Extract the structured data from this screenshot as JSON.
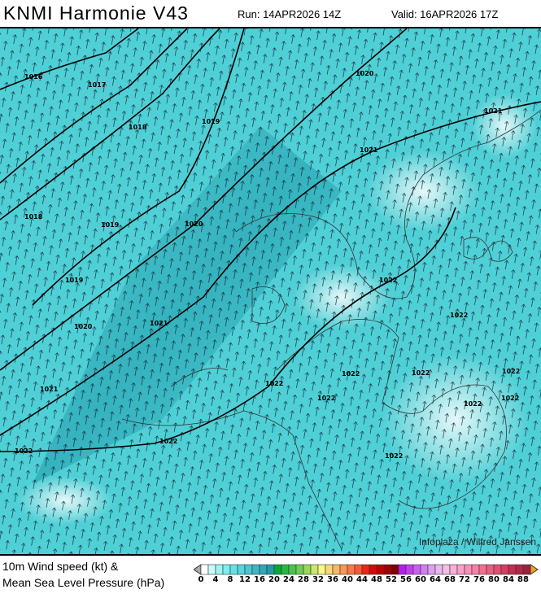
{
  "header": {
    "title": "KNMI Harmonie V43",
    "run": "Run: 14APR2026 14Z",
    "valid": "Valid: 16APR2026 17Z"
  },
  "map": {
    "background_color": "#4fd0d6",
    "calm_color": "#ffffff",
    "strong_color": "#2aa6b4",
    "isobar_labels": [
      "1016",
      "1017",
      "1018",
      "1019",
      "1020",
      "1021",
      "1021",
      "1018",
      "1019",
      "1020",
      "1019",
      "1020",
      "1021",
      "1021",
      "1022",
      "1022",
      "1022",
      "1022",
      "1022",
      "1022",
      "1022",
      "1022",
      "1022",
      "1022",
      "1022",
      "1022"
    ],
    "credit": "Infoplaza / Wilfred Janssen"
  },
  "legend": {
    "line1": "10m Wind speed (kt) &",
    "line2": "Mean Sea Level Pressure (hPa)",
    "tick_labels": [
      "0",
      "4",
      "8",
      "12",
      "16",
      "20",
      "24",
      "28",
      "32",
      "36",
      "40",
      "44",
      "48",
      "52",
      "56",
      "60",
      "64",
      "68",
      "72",
      "76",
      "80",
      "84",
      "88"
    ],
    "colors": [
      "#ffffff",
      "#c8fafa",
      "#a0f4f4",
      "#80eeee",
      "#66e2e6",
      "#58d4dc",
      "#4cc6d0",
      "#40b6c4",
      "#34a6b6",
      "#2898aa",
      "#08a83a",
      "#28b840",
      "#48c44c",
      "#70cc56",
      "#98d85c",
      "#c8e870",
      "#f8f888",
      "#f8d878",
      "#f8b868",
      "#f89858",
      "#f87848",
      "#f85838",
      "#e82818",
      "#d80808",
      "#c00000",
      "#a00000",
      "#800000",
      "#b020f0",
      "#c040f0",
      "#c860f0",
      "#d080f0",
      "#e0a0f0",
      "#e8b8f0",
      "#f0c0e8",
      "#f8b0d8",
      "#f8a0c8",
      "#f890b8",
      "#f880a8",
      "#f07090",
      "#e86080",
      "#e05070",
      "#d04060",
      "#c03050",
      "#b02848",
      "#a02040"
    ]
  }
}
